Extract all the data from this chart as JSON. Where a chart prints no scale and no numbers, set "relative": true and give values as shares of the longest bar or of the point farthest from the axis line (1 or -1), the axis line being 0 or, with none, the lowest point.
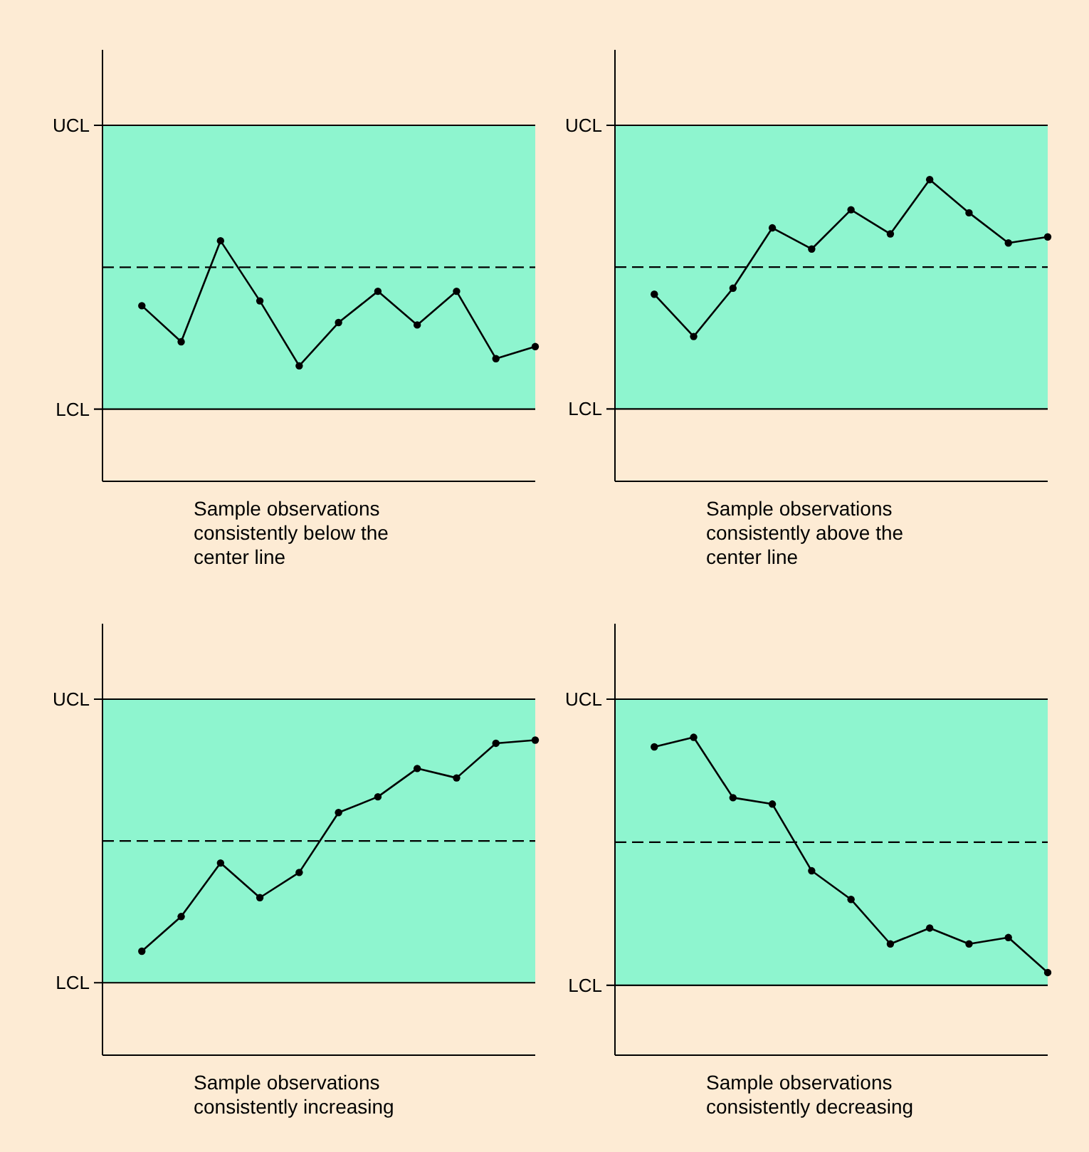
{
  "chart_data": [
    {
      "type": "line",
      "relative": true,
      "xlabel": "Sample observations consistently below the center line",
      "categories": [
        null,
        null,
        null,
        null,
        null,
        null,
        null,
        null,
        null,
        null,
        null
      ],
      "values": [
        0.73,
        0.58,
        1,
        0.75,
        0.48,
        0.66,
        0.79,
        0.65,
        0.79,
        0.51,
        0.56
      ],
      "color": "#000000",
      "marker": "circle",
      "bands": [
        {
          "axis": "y",
          "from": 0.3,
          "to": 1.48,
          "color": "#8ef5cf"
        }
      ],
      "ref_lines": [
        {
          "axis": "y",
          "value": 1.48,
          "label": "UCL",
          "color": "#000000",
          "line_style": "solid"
        },
        {
          "axis": "y",
          "value": 0.3,
          "label": "LCL",
          "color": "#000000",
          "line_style": "solid"
        },
        {
          "axis": "y",
          "value": 0.89,
          "color": "#000000",
          "line_style": "dashed"
        }
      ]
    },
    {
      "type": "line",
      "relative": true,
      "xlabel": "Sample observations consistently above the center line",
      "categories": [
        null,
        null,
        null,
        null,
        null,
        null,
        null,
        null,
        null,
        null,
        null
      ],
      "values": [
        0.62,
        0.48,
        0.64,
        0.84,
        0.77,
        0.9,
        0.82,
        1,
        0.89,
        0.79,
        0.81
      ],
      "color": "#000000",
      "marker": "circle",
      "bands": [
        {
          "axis": "y",
          "from": 0.24,
          "to": 1.18,
          "color": "#8ef5cf"
        }
      ],
      "ref_lines": [
        {
          "axis": "y",
          "value": 1.18,
          "label": "UCL",
          "color": "#000000",
          "line_style": "solid"
        },
        {
          "axis": "y",
          "value": 0.24,
          "label": "LCL",
          "color": "#000000",
          "line_style": "solid"
        },
        {
          "axis": "y",
          "value": 0.71,
          "color": "#000000",
          "line_style": "dashed"
        }
      ]
    },
    {
      "type": "line",
      "relative": true,
      "xlabel": "Sample observations consistently increasing",
      "categories": [
        null,
        null,
        null,
        null,
        null,
        null,
        null,
        null,
        null,
        null,
        null
      ],
      "values": [
        0.33,
        0.44,
        0.61,
        0.5,
        0.58,
        0.77,
        0.82,
        0.91,
        0.88,
        0.99,
        1
      ],
      "color": "#000000",
      "marker": "circle",
      "bands": [
        {
          "axis": "y",
          "from": 0.23,
          "to": 1.13,
          "color": "#8ef5cf"
        }
      ],
      "ref_lines": [
        {
          "axis": "y",
          "value": 1.13,
          "label": "UCL",
          "color": "#000000",
          "line_style": "solid"
        },
        {
          "axis": "y",
          "value": 0.23,
          "label": "LCL",
          "color": "#000000",
          "line_style": "solid"
        },
        {
          "axis": "y",
          "value": 0.68,
          "color": "#000000",
          "line_style": "dashed"
        }
      ]
    },
    {
      "type": "line",
      "relative": true,
      "xlabel": "Sample observations consistently decreasing",
      "categories": [
        null,
        null,
        null,
        null,
        null,
        null,
        null,
        null,
        null,
        null,
        null
      ],
      "values": [
        0.97,
        1,
        0.81,
        0.79,
        0.58,
        0.49,
        0.35,
        0.4,
        0.35,
        0.37,
        0.26
      ],
      "color": "#000000",
      "marker": "circle",
      "bands": [
        {
          "axis": "y",
          "from": 0.22,
          "to": 1.12,
          "color": "#8ef5cf"
        }
      ],
      "ref_lines": [
        {
          "axis": "y",
          "value": 1.12,
          "label": "UCL",
          "color": "#000000",
          "line_style": "solid"
        },
        {
          "axis": "y",
          "value": 0.22,
          "label": "LCL",
          "color": "#000000",
          "line_style": "solid"
        },
        {
          "axis": "y",
          "value": 0.67,
          "color": "#000000",
          "line_style": "dashed"
        }
      ]
    }
  ]
}
